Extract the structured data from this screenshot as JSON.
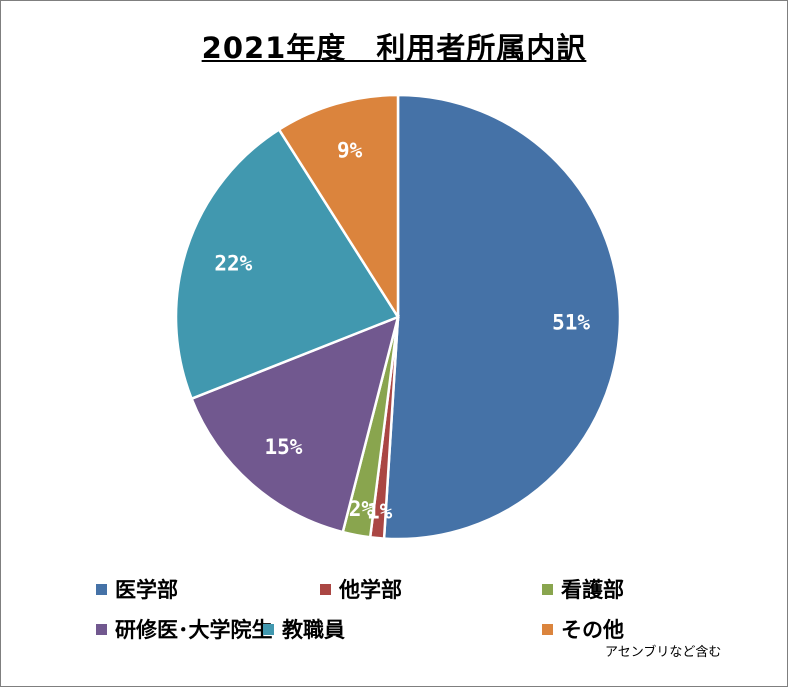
{
  "chart_data": {
    "type": "pie",
    "title": "2021年度　利用者所属内訳",
    "categories": [
      "医学部",
      "他学部",
      "看護部",
      "研修医･大学院生",
      "教職員",
      "その他"
    ],
    "values": [
      51,
      1,
      2,
      15,
      22,
      9
    ],
    "labels": [
      "51%",
      "1%",
      "2%",
      "15%",
      "22%",
      "9%"
    ],
    "colors": [
      "#4572A7",
      "#AA4643",
      "#89A54E",
      "#71588F",
      "#4198AF",
      "#DB843D"
    ],
    "start_angle_deg": 0,
    "direction": "clockwise",
    "legend_position": "bottom",
    "note": "アセンブリなど含む"
  }
}
